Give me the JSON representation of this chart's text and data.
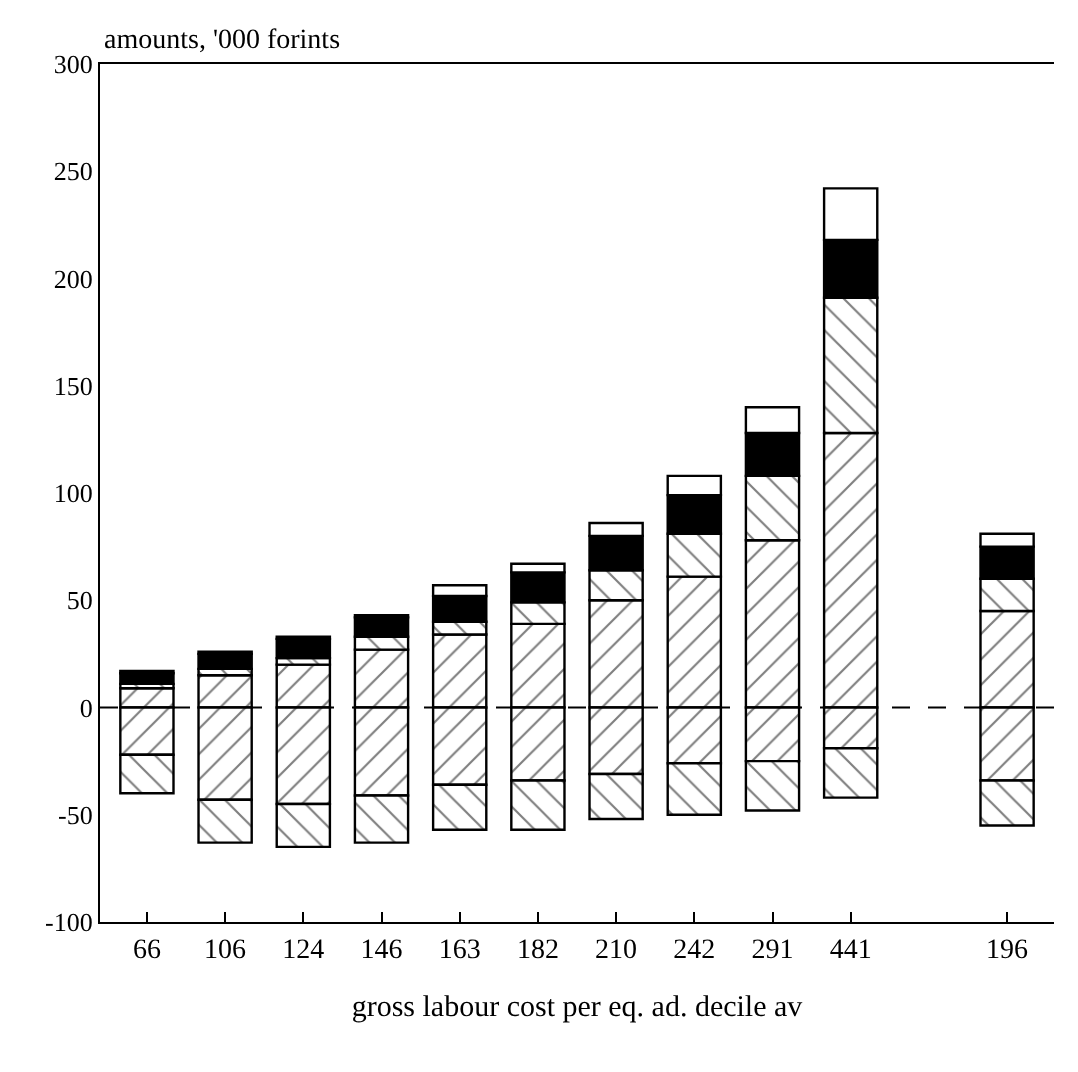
{
  "chart_data": {
    "type": "bar",
    "stacked": true,
    "ylabel": "amounts, '000 forints",
    "xlabel": "gross labour cost per eq. ad. decile av",
    "categories": [
      "66",
      "106",
      "124",
      "146",
      "163",
      "182",
      "210",
      "242",
      "291",
      "441",
      null,
      "196"
    ],
    "series": [
      {
        "color": "#000000",
        "values": [
          9,
          15,
          20,
          27,
          34,
          39,
          50,
          61,
          78,
          128,
          null,
          45
        ]
      },
      {
        "color": "#000000",
        "values": [
          2,
          3,
          3,
          6,
          6,
          10,
          14,
          20,
          30,
          63,
          null,
          15
        ]
      },
      {
        "color": "#000000",
        "values": [
          5,
          7,
          9,
          9,
          12,
          14,
          16,
          18,
          20,
          27,
          null,
          15
        ]
      },
      {
        "color": "#ffffff",
        "values": [
          1,
          1,
          1,
          1,
          5,
          4,
          6,
          9,
          12,
          24,
          null,
          6
        ]
      },
      {
        "color": "#000000",
        "values": [
          -22,
          -43,
          -45,
          -41,
          -36,
          -34,
          -31,
          -26,
          -25,
          -19,
          null,
          -34
        ]
      },
      {
        "color": "#000000",
        "values": [
          -18,
          -20,
          -20,
          -22,
          -21,
          -23,
          -21,
          -24,
          -23,
          -23,
          null,
          -21
        ]
      }
    ],
    "ylim": [
      -100,
      300
    ],
    "yticks": [
      -100,
      -50,
      0,
      50,
      100,
      150,
      200,
      250,
      300
    ],
    "ref_lines": [
      {
        "axis": "y",
        "value": 0,
        "line_style": "dashed",
        "color": "#000000"
      }
    ]
  }
}
